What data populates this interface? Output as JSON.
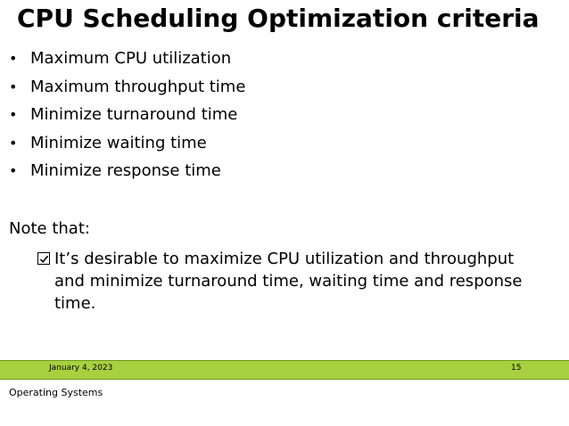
{
  "slide": {
    "title": "CPU Scheduling Optimization criteria",
    "bullet_symbol": "•",
    "bullets": [
      "Maximum CPU utilization",
      "Maximum throughput time",
      "Minimize turnaround time",
      "Minimize waiting time",
      "Minimize response time"
    ],
    "note_label": "Note that:",
    "note_icon": "checkbox-checked-icon",
    "note_text": "It’s desirable to  maximize CPU utilization and throughput and minimize turnaround time, waiting time and response time."
  },
  "footer": {
    "date": "January 4, 2023",
    "page_number": "15",
    "course": "Operating Systems",
    "bar_color": "#a8d040"
  }
}
